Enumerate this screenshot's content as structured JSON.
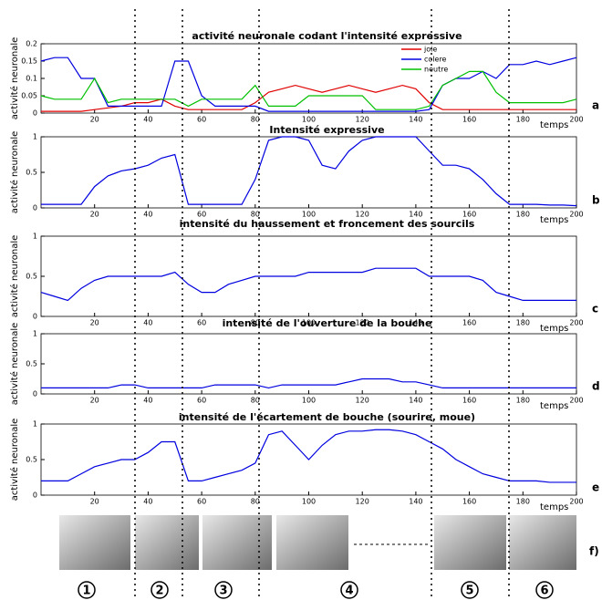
{
  "chart_data": [
    {
      "type": "line",
      "title": "activité neuronale codant l'intensité expressive",
      "panel": "a",
      "xlabel": "temps",
      "ylabel": "activité neuronale",
      "x": [
        0,
        5,
        10,
        15,
        20,
        25,
        30,
        35,
        40,
        45,
        50,
        55,
        60,
        65,
        70,
        75,
        80,
        85,
        90,
        95,
        100,
        105,
        110,
        115,
        120,
        125,
        130,
        135,
        140,
        145,
        150,
        155,
        160,
        165,
        170,
        175,
        180,
        185,
        190,
        195,
        200
      ],
      "series": [
        {
          "name": "joie",
          "color": "#e00000",
          "values": [
            0.005,
            0.005,
            0.005,
            0.005,
            0.01,
            0.015,
            0.02,
            0.03,
            0.03,
            0.04,
            0.02,
            0.01,
            0.01,
            0.01,
            0.01,
            0.01,
            0.03,
            0.06,
            0.07,
            0.08,
            0.07,
            0.06,
            0.07,
            0.08,
            0.07,
            0.06,
            0.07,
            0.08,
            0.07,
            0.03,
            0.01,
            0.01,
            0.01,
            0.01,
            0.01,
            0.01,
            0.01,
            0.01,
            0.01,
            0.01,
            0.01
          ]
        },
        {
          "name": "colere",
          "color": "#0000e0",
          "values": [
            0.15,
            0.16,
            0.16,
            0.1,
            0.1,
            0.02,
            0.02,
            0.02,
            0.02,
            0.02,
            0.15,
            0.15,
            0.05,
            0.02,
            0.02,
            0.02,
            0.02,
            0.005,
            0.005,
            0.005,
            0.005,
            0.005,
            0.005,
            0.005,
            0.005,
            0.005,
            0.005,
            0.005,
            0.005,
            0.01,
            0.08,
            0.1,
            0.1,
            0.12,
            0.1,
            0.14,
            0.14,
            0.15,
            0.14,
            0.15,
            0.16
          ]
        },
        {
          "name": "neutre",
          "color": "#00c000",
          "values": [
            0.05,
            0.04,
            0.04,
            0.04,
            0.1,
            0.03,
            0.04,
            0.04,
            0.04,
            0.04,
            0.04,
            0.02,
            0.04,
            0.04,
            0.04,
            0.04,
            0.08,
            0.02,
            0.02,
            0.02,
            0.05,
            0.05,
            0.05,
            0.05,
            0.05,
            0.01,
            0.01,
            0.01,
            0.01,
            0.02,
            0.08,
            0.1,
            0.12,
            0.12,
            0.06,
            0.03,
            0.03,
            0.03,
            0.03,
            0.03,
            0.04
          ]
        }
      ],
      "xlim": [
        0,
        200
      ],
      "xticks": [
        20,
        40,
        60,
        80,
        100,
        120,
        140,
        160,
        180,
        200
      ],
      "ylim": [
        0,
        0.2
      ],
      "yticks": [
        0,
        0.05,
        0.1,
        0.15,
        0.2
      ],
      "legend": "top-right"
    },
    {
      "type": "line",
      "title": "Intensité expressive",
      "panel": "b",
      "xlabel": "temps",
      "ylabel": "activité neuronale",
      "x": [
        0,
        5,
        10,
        15,
        20,
        25,
        30,
        35,
        40,
        45,
        50,
        55,
        60,
        65,
        70,
        75,
        80,
        85,
        90,
        95,
        100,
        105,
        110,
        115,
        120,
        125,
        130,
        135,
        140,
        145,
        150,
        155,
        160,
        165,
        170,
        175,
        180,
        185,
        190,
        195,
        200
      ],
      "series": [
        {
          "name": "intensité",
          "color": "#0000e0",
          "values": [
            0.05,
            0.05,
            0.05,
            0.05,
            0.3,
            0.45,
            0.52,
            0.55,
            0.6,
            0.7,
            0.75,
            0.05,
            0.05,
            0.05,
            0.05,
            0.05,
            0.4,
            0.95,
            1,
            1,
            0.95,
            0.6,
            0.55,
            0.8,
            0.95,
            1,
            1,
            1,
            1,
            0.8,
            0.6,
            0.6,
            0.55,
            0.4,
            0.2,
            0.05,
            0.05,
            0.05,
            0.04,
            0.04,
            0.03
          ]
        }
      ],
      "xlim": [
        0,
        200
      ],
      "xticks": [
        20,
        40,
        60,
        80,
        100,
        120,
        140,
        160,
        180,
        200
      ],
      "ylim": [
        0,
        1
      ],
      "yticks": [
        0,
        0.5,
        1
      ]
    },
    {
      "type": "line",
      "title": "intensité du haussement et froncement des sourcils",
      "panel": "c",
      "xlabel": "temps",
      "ylabel": "activité neuronale",
      "x": [
        0,
        5,
        10,
        15,
        20,
        25,
        30,
        35,
        40,
        45,
        50,
        55,
        60,
        65,
        70,
        75,
        80,
        85,
        90,
        95,
        100,
        105,
        110,
        115,
        120,
        125,
        130,
        135,
        140,
        145,
        150,
        155,
        160,
        165,
        170,
        175,
        180,
        185,
        190,
        195,
        200
      ],
      "series": [
        {
          "name": "sourcils",
          "color": "#0000e0",
          "values": [
            0.3,
            0.25,
            0.2,
            0.35,
            0.45,
            0.5,
            0.5,
            0.5,
            0.5,
            0.5,
            0.55,
            0.4,
            0.3,
            0.3,
            0.4,
            0.45,
            0.5,
            0.5,
            0.5,
            0.5,
            0.55,
            0.55,
            0.55,
            0.55,
            0.55,
            0.6,
            0.6,
            0.6,
            0.6,
            0.5,
            0.5,
            0.5,
            0.5,
            0.45,
            0.3,
            0.25,
            0.2,
            0.2,
            0.2,
            0.2,
            0.2
          ]
        }
      ],
      "xlim": [
        0,
        200
      ],
      "xticks": [
        20,
        40,
        60,
        80,
        100,
        120,
        140,
        160,
        180,
        200
      ],
      "ylim": [
        0,
        1
      ],
      "yticks": [
        0,
        0.5,
        1
      ]
    },
    {
      "type": "line",
      "title": "intensité de l'ouverture de la bouche",
      "panel": "d",
      "xlabel": "temps",
      "ylabel": "activité neuronale",
      "x": [
        0,
        5,
        10,
        15,
        20,
        25,
        30,
        35,
        40,
        45,
        50,
        55,
        60,
        65,
        70,
        75,
        80,
        85,
        90,
        95,
        100,
        105,
        110,
        115,
        120,
        125,
        130,
        135,
        140,
        145,
        150,
        155,
        160,
        165,
        170,
        175,
        180,
        185,
        190,
        195,
        200
      ],
      "series": [
        {
          "name": "bouche",
          "color": "#0000e0",
          "values": [
            0.1,
            0.1,
            0.1,
            0.1,
            0.1,
            0.1,
            0.15,
            0.15,
            0.1,
            0.1,
            0.1,
            0.1,
            0.1,
            0.15,
            0.15,
            0.15,
            0.15,
            0.1,
            0.15,
            0.15,
            0.15,
            0.15,
            0.15,
            0.2,
            0.25,
            0.25,
            0.25,
            0.2,
            0.2,
            0.15,
            0.1,
            0.1,
            0.1,
            0.1,
            0.1,
            0.1,
            0.1,
            0.1,
            0.1,
            0.1,
            0.1
          ]
        }
      ],
      "xlim": [
        0,
        200
      ],
      "xticks": [
        20,
        40,
        60,
        80,
        100,
        120,
        140,
        160,
        180,
        200
      ],
      "ylim": [
        0,
        1
      ],
      "yticks": [
        0,
        0.5,
        1
      ]
    },
    {
      "type": "line",
      "title": "intensité de l'écartement de bouche (sourire, moue)",
      "panel": "e",
      "xlabel": "temps",
      "ylabel": "activité neuronale",
      "x": [
        0,
        5,
        10,
        15,
        20,
        25,
        30,
        35,
        40,
        45,
        50,
        55,
        60,
        65,
        70,
        75,
        80,
        85,
        90,
        95,
        100,
        105,
        110,
        115,
        120,
        125,
        130,
        135,
        140,
        145,
        150,
        155,
        160,
        165,
        170,
        175,
        180,
        185,
        190,
        195,
        200
      ],
      "series": [
        {
          "name": "écartement",
          "color": "#0000e0",
          "values": [
            0.2,
            0.2,
            0.2,
            0.3,
            0.4,
            0.45,
            0.5,
            0.5,
            0.6,
            0.75,
            0.75,
            0.2,
            0.2,
            0.25,
            0.3,
            0.35,
            0.45,
            0.85,
            0.9,
            0.7,
            0.5,
            0.7,
            0.85,
            0.9,
            0.9,
            0.92,
            0.92,
            0.9,
            0.85,
            0.75,
            0.65,
            0.5,
            0.4,
            0.3,
            0.25,
            0.2,
            0.2,
            0.2,
            0.18,
            0.18,
            0.18
          ]
        }
      ],
      "xlim": [
        0,
        200
      ],
      "xticks": [
        20,
        40,
        60,
        80,
        100,
        120,
        140,
        160,
        180,
        200
      ],
      "ylim": [
        0,
        1
      ],
      "yticks": [
        0,
        0.5,
        1
      ]
    }
  ],
  "faces_panel": "f)",
  "steps": [
    "1",
    "2",
    "3",
    "4",
    "5",
    "6"
  ]
}
